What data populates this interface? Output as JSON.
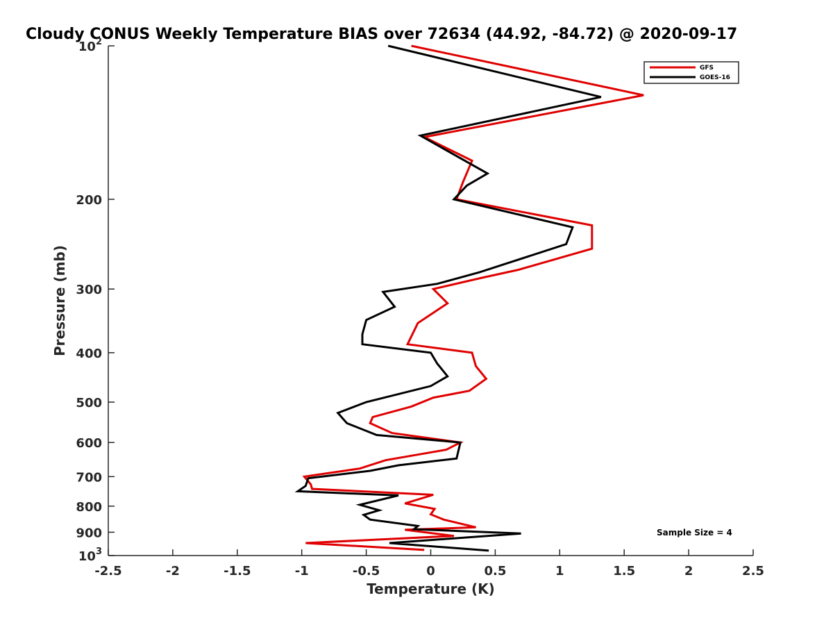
{
  "chart_data": {
    "type": "line",
    "title": "Cloudy CONUS Weekly Temperature BIAS over 72634 (44.92, -84.72) @ 2020-09-17",
    "xlabel": "Temperature (K)",
    "ylabel": "Pressure (mb)",
    "xlim": [
      -2.5,
      2.5
    ],
    "ylim": [
      100,
      1000
    ],
    "y_scale": "log",
    "y_reversed": true,
    "grid": false,
    "x_ticks": [
      "-2.5",
      "-2",
      "-1.5",
      "-1",
      "-0.5",
      "0",
      "0.5",
      "1",
      "1.5",
      "2",
      "2.5"
    ],
    "y_ticks": [
      {
        "value": 100,
        "base": "10",
        "exp": "2"
      },
      {
        "value": 200,
        "label": "200"
      },
      {
        "value": 300,
        "label": "300"
      },
      {
        "value": 400,
        "label": "400"
      },
      {
        "value": 500,
        "label": "500"
      },
      {
        "value": 600,
        "label": "600"
      },
      {
        "value": 700,
        "label": "700"
      },
      {
        "value": 800,
        "label": "800"
      },
      {
        "value": 900,
        "label": "900"
      },
      {
        "value": 1000,
        "base": "10",
        "exp": "3"
      }
    ],
    "legend_position": "top-right",
    "annotation": "Sample Size = 4",
    "series": [
      {
        "name": "GFS",
        "color": "#e00000",
        "points": [
          [
            -0.15,
            100
          ],
          [
            1.65,
            125
          ],
          [
            -0.05,
            151
          ],
          [
            0.32,
            168
          ],
          [
            0.25,
            185
          ],
          [
            0.2,
            200
          ],
          [
            1.25,
            225
          ],
          [
            1.25,
            250
          ],
          [
            0.68,
            275
          ],
          [
            0.4,
            285
          ],
          [
            0.02,
            300
          ],
          [
            0.13,
            320
          ],
          [
            -0.1,
            350
          ],
          [
            -0.18,
            385
          ],
          [
            0.32,
            400
          ],
          [
            0.35,
            425
          ],
          [
            0.43,
            450
          ],
          [
            0.3,
            475
          ],
          [
            0.02,
            490
          ],
          [
            -0.15,
            510
          ],
          [
            -0.45,
            535
          ],
          [
            -0.47,
            550
          ],
          [
            -0.3,
            575
          ],
          [
            0.23,
            600
          ],
          [
            0.12,
            620
          ],
          [
            -0.35,
            650
          ],
          [
            -0.55,
            675
          ],
          [
            -0.98,
            700
          ],
          [
            -0.93,
            725
          ],
          [
            -0.92,
            740
          ],
          [
            0.02,
            760
          ],
          [
            -0.2,
            790
          ],
          [
            0.03,
            810
          ],
          [
            0.0,
            830
          ],
          [
            0.1,
            850
          ],
          [
            0.35,
            880
          ],
          [
            -0.2,
            890
          ],
          [
            0.18,
            915
          ],
          [
            -0.97,
            945
          ],
          [
            -0.05,
            975
          ]
        ]
      },
      {
        "name": "GOES-16",
        "color": "#000000",
        "points": [
          [
            -0.33,
            100
          ],
          [
            1.32,
            126
          ],
          [
            -0.08,
            150
          ],
          [
            0.44,
            178
          ],
          [
            0.28,
            188
          ],
          [
            0.18,
            200
          ],
          [
            1.1,
            227
          ],
          [
            1.05,
            245
          ],
          [
            0.38,
            278
          ],
          [
            0.05,
            293
          ],
          [
            -0.37,
            304
          ],
          [
            -0.28,
            325
          ],
          [
            -0.5,
            345
          ],
          [
            -0.53,
            368
          ],
          [
            -0.53,
            385
          ],
          [
            0.0,
            400
          ],
          [
            0.05,
            420
          ],
          [
            0.13,
            445
          ],
          [
            0.0,
            465
          ],
          [
            -0.5,
            500
          ],
          [
            -0.72,
            525
          ],
          [
            -0.65,
            550
          ],
          [
            -0.42,
            580
          ],
          [
            0.23,
            600
          ],
          [
            0.2,
            645
          ],
          [
            -0.25,
            665
          ],
          [
            -0.47,
            682
          ],
          [
            -0.95,
            705
          ],
          [
            -0.97,
            730
          ],
          [
            -1.03,
            748
          ],
          [
            -0.25,
            762
          ],
          [
            -0.55,
            795
          ],
          [
            -0.4,
            815
          ],
          [
            -0.52,
            832
          ],
          [
            -0.47,
            850
          ],
          [
            -0.1,
            875
          ],
          [
            -0.13,
            888
          ],
          [
            0.7,
            905
          ],
          [
            -0.32,
            945
          ],
          [
            0.45,
            978
          ]
        ]
      }
    ]
  }
}
